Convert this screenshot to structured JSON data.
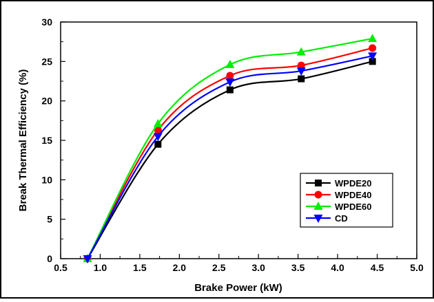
{
  "chart_data": {
    "type": "line",
    "xlabel": "Brake Power (kW)",
    "ylabel": "Break Thermal Efficiency (%)",
    "xlim": [
      0.5,
      5.0
    ],
    "ylim": [
      0,
      30
    ],
    "xticks": [
      "0.5",
      "1.0",
      "1.5",
      "2.0",
      "2.5",
      "3.0",
      "3.5",
      "4.0",
      "4.5",
      "5.0"
    ],
    "yticks": [
      "0",
      "5",
      "10",
      "15",
      "20",
      "25",
      "30"
    ],
    "grid": false,
    "legend_position": "bottom-right",
    "x": [
      0.84,
      1.73,
      2.64,
      3.54,
      4.44
    ],
    "series": [
      {
        "name": "WPDE20",
        "values": [
          0,
          14.5,
          21.4,
          22.8,
          25.0
        ],
        "color": "#000000",
        "marker": "square"
      },
      {
        "name": "WPDE40",
        "values": [
          0,
          16.3,
          23.2,
          24.5,
          26.7
        ],
        "color": "#ff0000",
        "marker": "circle"
      },
      {
        "name": "WPDE60",
        "values": [
          0,
          17.1,
          24.6,
          26.2,
          27.9
        ],
        "color": "#00ee00",
        "marker": "triangle-up"
      },
      {
        "name": "CD",
        "values": [
          0,
          15.5,
          22.4,
          23.8,
          25.7
        ],
        "color": "#0000ff",
        "marker": "triangle-down"
      }
    ]
  }
}
